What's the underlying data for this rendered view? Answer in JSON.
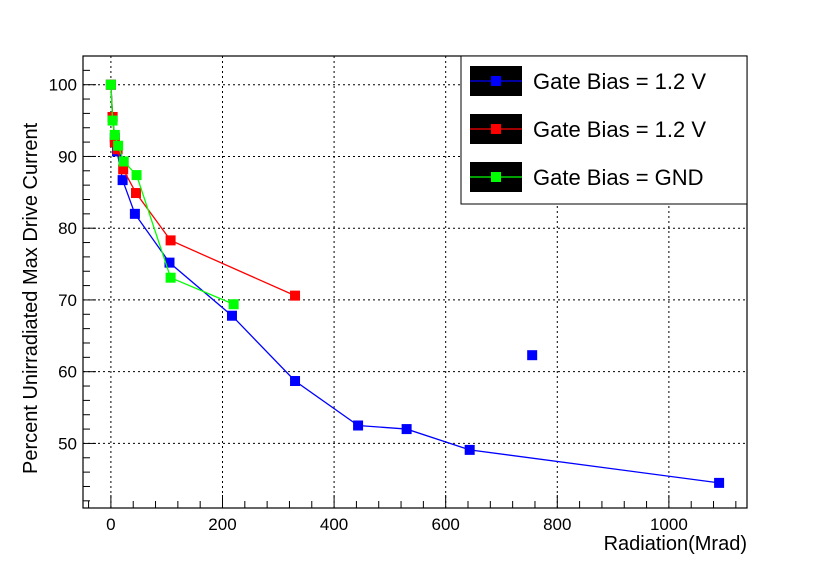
{
  "chart_data": {
    "type": "scatter",
    "title": "",
    "xlabel": "Radiation(Mrad)",
    "ylabel": "Percent Unirradiated Max Drive Current",
    "xlim": [
      -50,
      1140
    ],
    "ylim": [
      41,
      104
    ],
    "xticks": [
      0,
      200,
      400,
      600,
      800,
      1000
    ],
    "yticks": [
      50,
      60,
      70,
      80,
      90,
      100
    ],
    "grid": true,
    "legend_position": "top-right",
    "series": [
      {
        "name": "Gate Bias = 1.2 V",
        "color": "#0000ff",
        "lines": true,
        "x": [
          0,
          3,
          7,
          11,
          21,
          43,
          105,
          217,
          330,
          443,
          530,
          643,
          1090
        ],
        "y": [
          100,
          95.5,
          92.6,
          90.7,
          86.7,
          82.0,
          75.2,
          67.8,
          58.7,
          52.5,
          52.0,
          49.1,
          44.5
        ]
      },
      {
        "name": "Gate Bias = 1.2 V",
        "color": "#ff0000",
        "lines": true,
        "x": [
          0,
          3,
          7,
          12,
          22,
          45,
          107,
          330
        ],
        "y": [
          100,
          95.5,
          92.0,
          91.0,
          88.2,
          84.9,
          78.3,
          70.6
        ]
      },
      {
        "name": "Gate Bias = GND",
        "color": "#00ff00",
        "lines": true,
        "x": [
          0,
          3,
          7,
          13,
          23,
          46,
          107,
          220
        ],
        "y": [
          100,
          95.0,
          93.0,
          91.5,
          89.3,
          87.4,
          73.1,
          69.4
        ]
      },
      {
        "name": "",
        "color": "#0000ff",
        "lines": false,
        "x": [
          755
        ],
        "y": [
          62.3
        ]
      }
    ]
  }
}
